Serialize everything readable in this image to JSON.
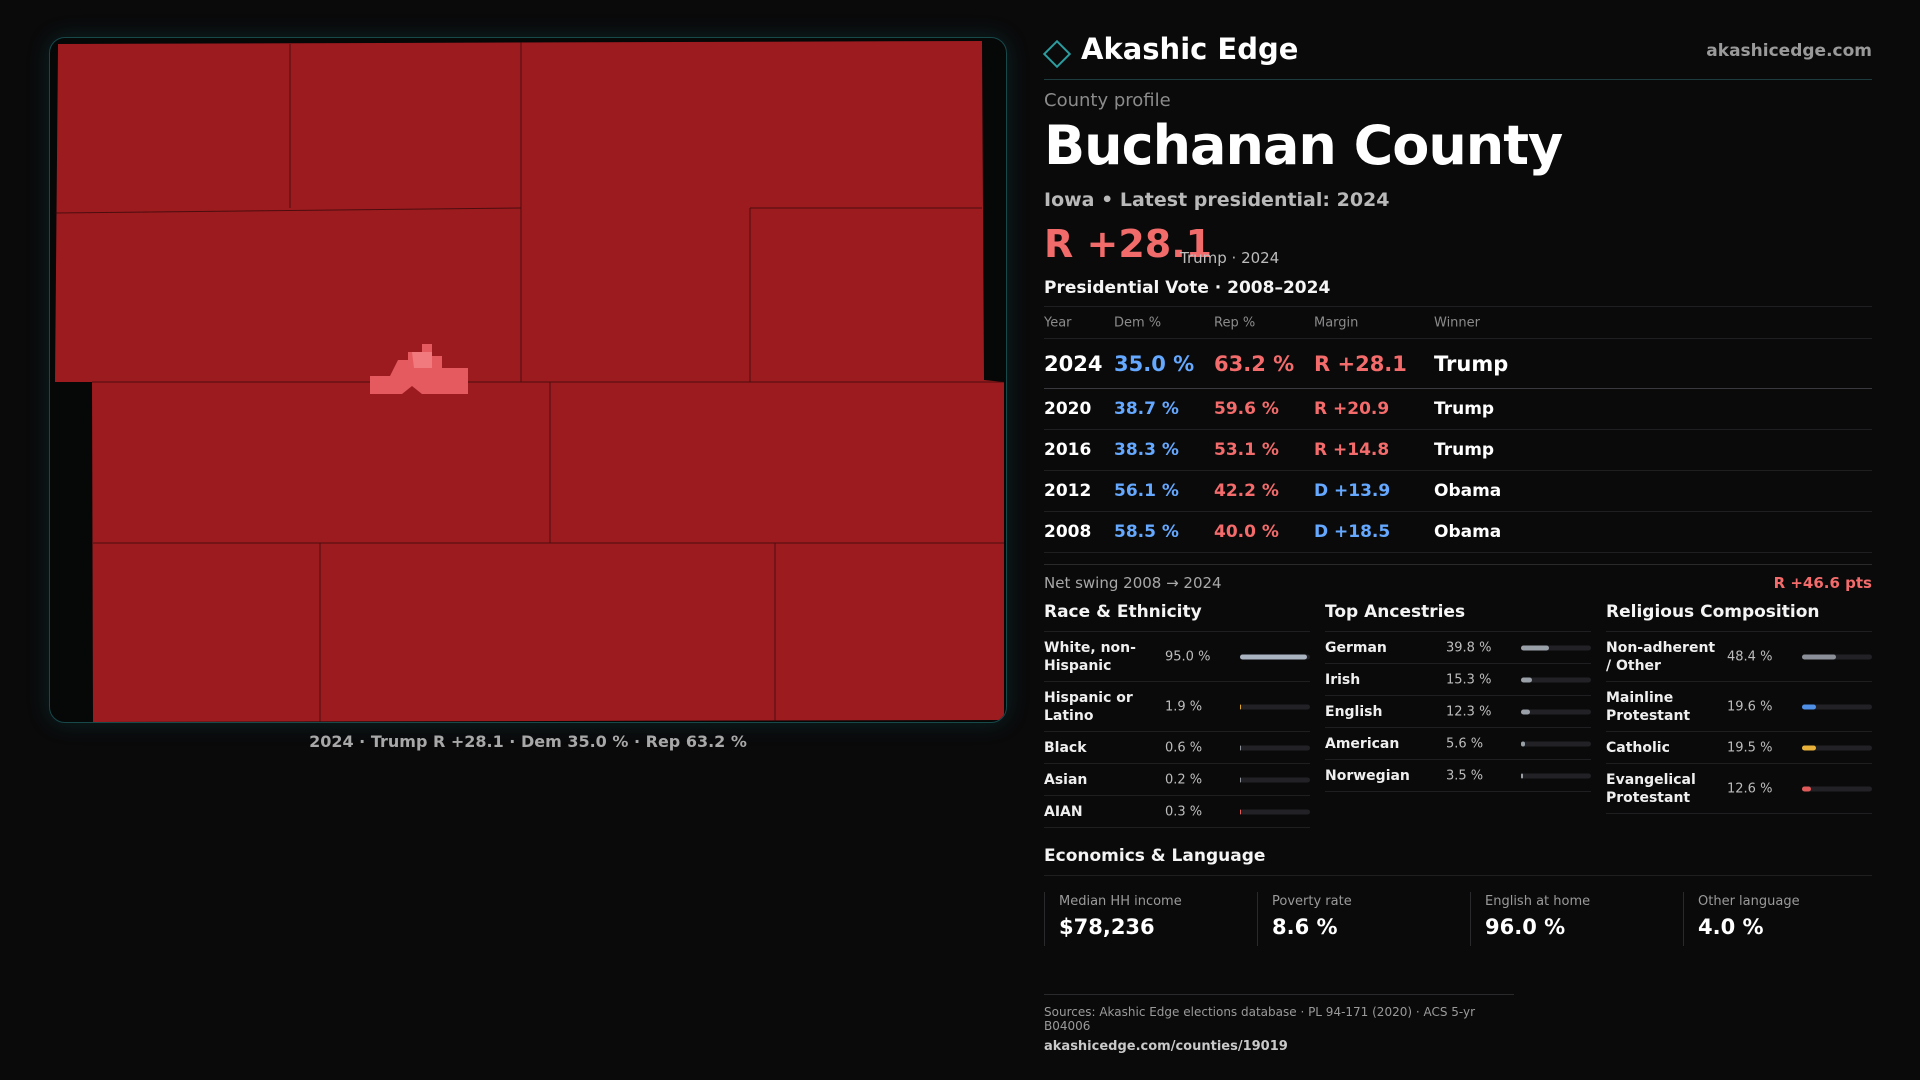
{
  "brand": {
    "name": "Akashic Edge",
    "url": "akashicedge.com"
  },
  "profile": {
    "kicker": "County profile",
    "county": "Buchanan County",
    "subtitle": "Iowa • Latest presidential: 2024",
    "headline_margin": "R +28.1",
    "headline_note": "Trump · 2024"
  },
  "map": {
    "caption": "2024 · Trump R +28.1 · Dem 35.0 % · Rep 63.2 %",
    "colors": {
      "county_fill": "#9c1b1f",
      "town_fill": "#e45a5f",
      "frame": "#17484a"
    }
  },
  "vote": {
    "title": "Presidential Vote · 2008–2024",
    "headers": {
      "year": "Year",
      "dem": "Dem %",
      "rep": "Rep %",
      "margin": "Margin",
      "winner": "Winner"
    },
    "rows": [
      {
        "year": "2024",
        "dem": "35.0 %",
        "rep": "63.2 %",
        "margin": "R +28.1",
        "party": "rep",
        "winner": "Trump"
      },
      {
        "year": "2020",
        "dem": "38.7 %",
        "rep": "59.6 %",
        "margin": "R +20.9",
        "party": "rep",
        "winner": "Trump"
      },
      {
        "year": "2016",
        "dem": "38.3 %",
        "rep": "53.1 %",
        "margin": "R +14.8",
        "party": "rep",
        "winner": "Trump"
      },
      {
        "year": "2012",
        "dem": "56.1 %",
        "rep": "42.2 %",
        "margin": "D +13.9",
        "party": "dem",
        "winner": "Obama"
      },
      {
        "year": "2008",
        "dem": "58.5 %",
        "rep": "40.0 %",
        "margin": "D +18.5",
        "party": "dem",
        "winner": "Obama"
      }
    ],
    "swing_label": "Net swing 2008 → 2024",
    "swing_value": "R +46.6 pts"
  },
  "race": {
    "title": "Race & Ethnicity",
    "items": [
      {
        "label": "White, non-Hispanic",
        "value": "95.0 %",
        "pct": 95.0,
        "color": "#aab3c0"
      },
      {
        "label": "Hispanic or Latino",
        "value": "1.9 %",
        "pct": 1.9,
        "color": "#e0a52c"
      },
      {
        "label": "Black",
        "value": "0.6 %",
        "pct": 0.6,
        "color": "#8a8f98"
      },
      {
        "label": "Asian",
        "value": "0.2 %",
        "pct": 0.2,
        "color": "#8a8f98"
      },
      {
        "label": "AIAN",
        "value": "0.3 %",
        "pct": 0.3,
        "color": "#e05a5a"
      }
    ]
  },
  "ancestry": {
    "title": "Top Ancestries",
    "items": [
      {
        "label": "German",
        "value": "39.8 %",
        "pct": 39.8,
        "color": "#9aa0a8"
      },
      {
        "label": "Irish",
        "value": "15.3 %",
        "pct": 15.3,
        "color": "#9aa0a8"
      },
      {
        "label": "English",
        "value": "12.3 %",
        "pct": 12.3,
        "color": "#9aa0a8"
      },
      {
        "label": "American",
        "value": "5.6 %",
        "pct": 5.6,
        "color": "#9aa0a8"
      },
      {
        "label": "Norwegian",
        "value": "3.5 %",
        "pct": 3.5,
        "color": "#9aa0a8"
      }
    ]
  },
  "religion": {
    "title": "Religious Composition",
    "items": [
      {
        "label": "Non-adherent / Other",
        "value": "48.4 %",
        "pct": 48.4,
        "color": "#8a8f98"
      },
      {
        "label": "Mainline Protestant",
        "value": "19.6 %",
        "pct": 19.6,
        "color": "#4f8fe6"
      },
      {
        "label": "Catholic",
        "value": "19.5 %",
        "pct": 19.5,
        "color": "#e8b23a"
      },
      {
        "label": "Evangelical Protestant",
        "value": "12.6 %",
        "pct": 12.6,
        "color": "#e05a5a"
      }
    ]
  },
  "economics": {
    "title": "Economics & Language",
    "cells": [
      {
        "label": "Median HH income",
        "value": "$78,236"
      },
      {
        "label": "Poverty rate",
        "value": "8.6 %"
      },
      {
        "label": "English at home",
        "value": "96.0 %"
      },
      {
        "label": "Other language",
        "value": "4.0 %"
      }
    ]
  },
  "sources": {
    "text": "Sources: Akashic Edge elections database · PL 94-171 (2020) · ACS 5-yr B04006",
    "link": "akashicedge.com/counties/19019"
  }
}
